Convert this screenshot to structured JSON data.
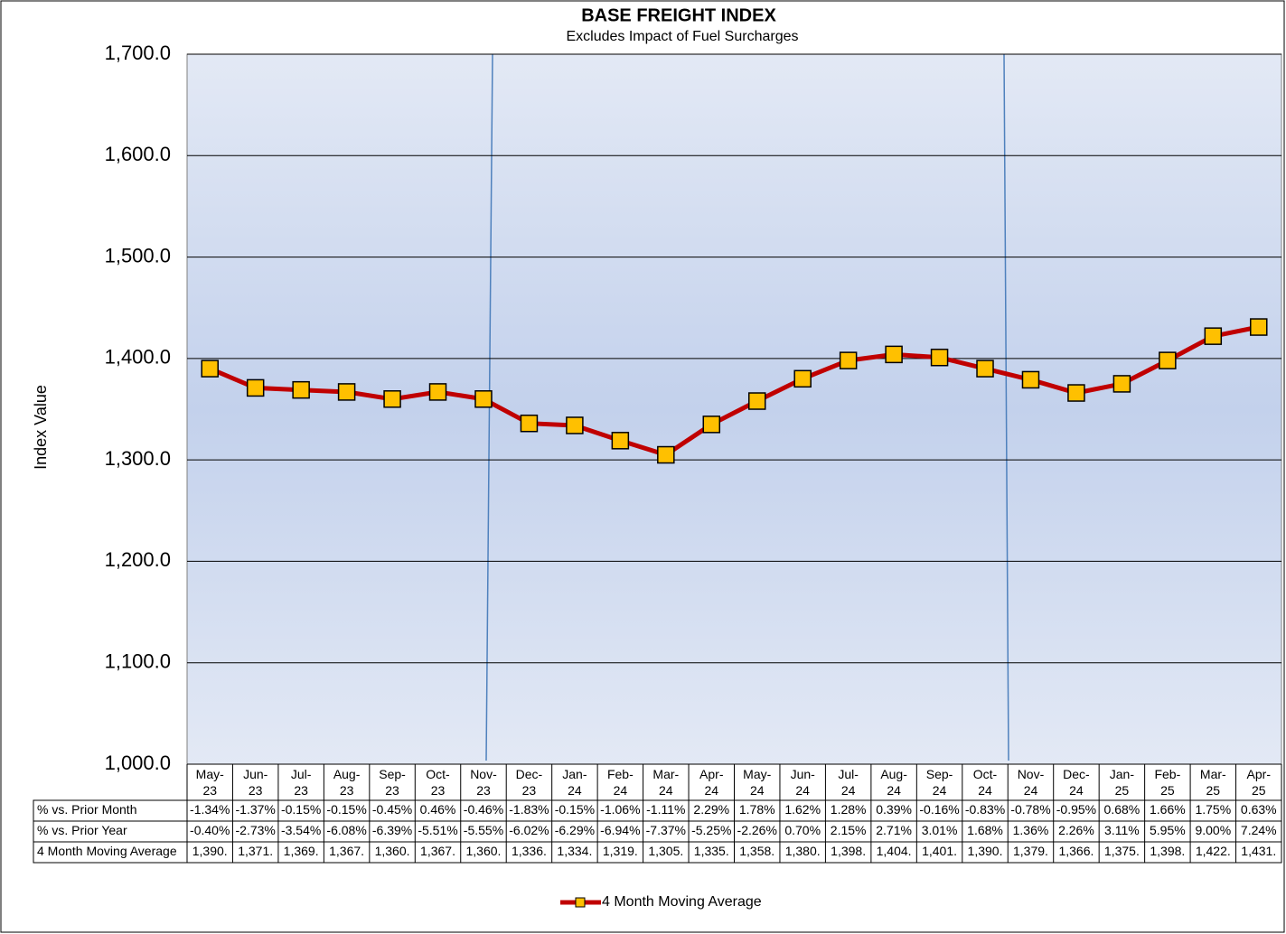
{
  "chart_data": {
    "type": "line",
    "title": "BASE FREIGHT INDEX",
    "subtitle": "Excludes Impact of Fuel Surcharges",
    "y_label": "Index Value",
    "categories": [
      "May-23",
      "Jun-23",
      "Jul-23",
      "Aug-23",
      "Sep-23",
      "Oct-23",
      "Nov-23",
      "Dec-23",
      "Jan-24",
      "Feb-24",
      "Mar-24",
      "Apr-24",
      "May-24",
      "Jun-24",
      "Jul-24",
      "Aug-24",
      "Sep-24",
      "Oct-24",
      "Nov-24",
      "Dec-24",
      "Jan-25",
      "Feb-25",
      "Mar-25",
      "Apr-25"
    ],
    "series": [
      {
        "name": "4 Month Moving Average",
        "color": "#c00000",
        "marker_color": "#ffc000",
        "values": [
          1390,
          1371,
          1369,
          1367,
          1360,
          1367,
          1360,
          1336,
          1334,
          1319,
          1305,
          1335,
          1358,
          1380,
          1398,
          1404,
          1401,
          1390,
          1379,
          1366,
          1375,
          1398,
          1422,
          1431
        ],
        "value_labels": [
          "1,390.",
          "1,371.",
          "1,369.",
          "1,367.",
          "1,360.",
          "1,367.",
          "1,360.",
          "1,336.",
          "1,334.",
          "1,319.",
          "1,305.",
          "1,335.",
          "1,358.",
          "1,380.",
          "1,398.",
          "1,404.",
          "1,401.",
          "1,390.",
          "1,379.",
          "1,366.",
          "1,375.",
          "1,398.",
          "1,422.",
          "1,431."
        ]
      }
    ],
    "data_table": [
      {
        "label": "% vs. Prior Month",
        "cells": [
          "-1.34%",
          "-1.37%",
          "-0.15%",
          "-0.15%",
          "-0.45%",
          "0.46%",
          "-0.46%",
          "-1.83%",
          "-0.15%",
          "-1.06%",
          "-1.11%",
          "2.29%",
          "1.78%",
          "1.62%",
          "1.28%",
          "0.39%",
          "-0.16%",
          "-0.83%",
          "-0.78%",
          "-0.95%",
          "0.68%",
          "1.66%",
          "1.75%",
          "0.63%"
        ]
      },
      {
        "label": "% vs. Prior Year",
        "cells": [
          "-0.40%",
          "-2.73%",
          "-3.54%",
          "-6.08%",
          "-6.39%",
          "-5.51%",
          "-5.55%",
          "-6.02%",
          "-6.29%",
          "-6.94%",
          "-7.37%",
          "-5.25%",
          "-2.26%",
          "0.70%",
          "2.15%",
          "2.71%",
          "3.01%",
          "1.68%",
          "1.36%",
          "2.26%",
          "3.11%",
          "5.95%",
          "9.00%",
          "7.24%"
        ]
      }
    ],
    "ylim": [
      1000,
      1700
    ],
    "yticks": [
      {
        "value": 1000,
        "label": "1,000.0"
      },
      {
        "value": 1100,
        "label": "1,100.0"
      },
      {
        "value": 1200,
        "label": "1,200.0"
      },
      {
        "value": 1300,
        "label": "1,300.0"
      },
      {
        "value": 1400,
        "label": "1,400.0"
      },
      {
        "value": 1500,
        "label": "1,500.0"
      },
      {
        "value": 1600,
        "label": "1,600.0"
      },
      {
        "value": 1700,
        "label": "1,700.0"
      }
    ],
    "grid": true,
    "legend": "bottom"
  }
}
